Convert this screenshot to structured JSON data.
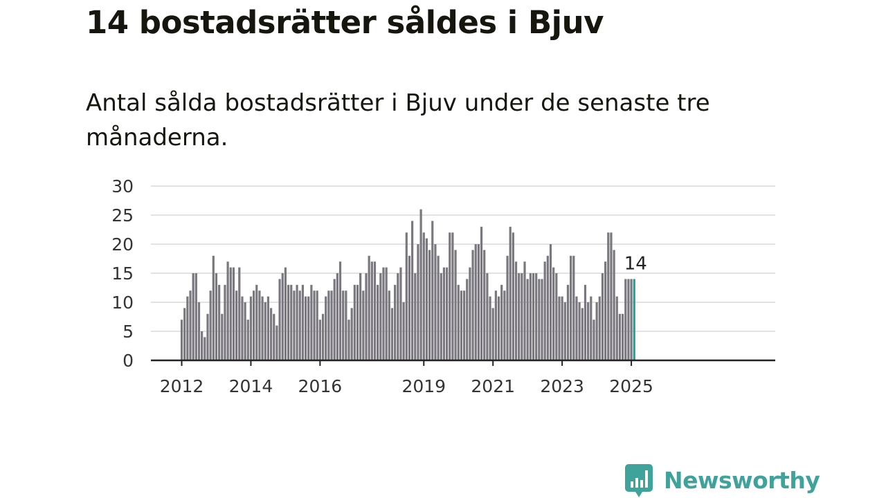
{
  "title": "14 bostadsrätter såldes i Bjuv",
  "subtitle": "Antal sålda bostadsrätter i Bjuv under de senaste tre månaderna.",
  "brand": {
    "name": "Newsworthy",
    "color": "#3fa39c",
    "icon": "newsworthy-bar-chart-icon"
  },
  "colors": {
    "bar": "#7a787e",
    "highlight": "#23a19a",
    "grid": "#d9d9d9",
    "axis": "#222222"
  },
  "chart_data": {
    "type": "bar",
    "x_start": "2012-01",
    "x_end": "2025-02",
    "ylim": [
      0,
      30
    ],
    "yticks": [
      0,
      5,
      10,
      15,
      20,
      25,
      30
    ],
    "xtick_labels": [
      "2012",
      "2014",
      "2016",
      "2019",
      "2021",
      "2023",
      "2025"
    ],
    "grid": true,
    "highlight_last": true,
    "last_label": "14",
    "values": [
      7,
      9,
      11,
      12,
      15,
      15,
      10,
      5,
      4,
      8,
      12,
      18,
      15,
      13,
      8,
      13,
      17,
      16,
      16,
      12,
      16,
      11,
      10,
      7,
      11,
      12,
      13,
      12,
      11,
      10,
      11,
      9,
      8,
      6,
      14,
      15,
      16,
      13,
      13,
      12,
      13,
      12,
      13,
      11,
      11,
      13,
      12,
      12,
      7,
      8,
      11,
      12,
      12,
      14,
      15,
      17,
      12,
      12,
      7,
      9,
      13,
      13,
      15,
      12,
      15,
      18,
      17,
      17,
      13,
      15,
      16,
      16,
      12,
      9,
      13,
      15,
      16,
      10,
      22,
      18,
      24,
      15,
      20,
      26,
      22,
      21,
      19,
      24,
      20,
      18,
      15,
      16,
      16,
      22,
      22,
      19,
      13,
      12,
      12,
      14,
      16,
      19,
      20,
      20,
      23,
      19,
      15,
      11,
      9,
      12,
      11,
      13,
      12,
      18,
      23,
      22,
      17,
      15,
      15,
      17,
      14,
      15,
      15,
      15,
      14,
      14,
      17,
      18,
      20,
      16,
      15,
      11,
      11,
      10,
      13,
      18,
      18,
      11,
      10,
      9,
      13,
      10,
      11,
      7,
      10,
      11,
      15,
      17,
      22,
      22,
      19,
      11,
      8,
      8,
      14,
      14,
      14,
      14
    ]
  }
}
